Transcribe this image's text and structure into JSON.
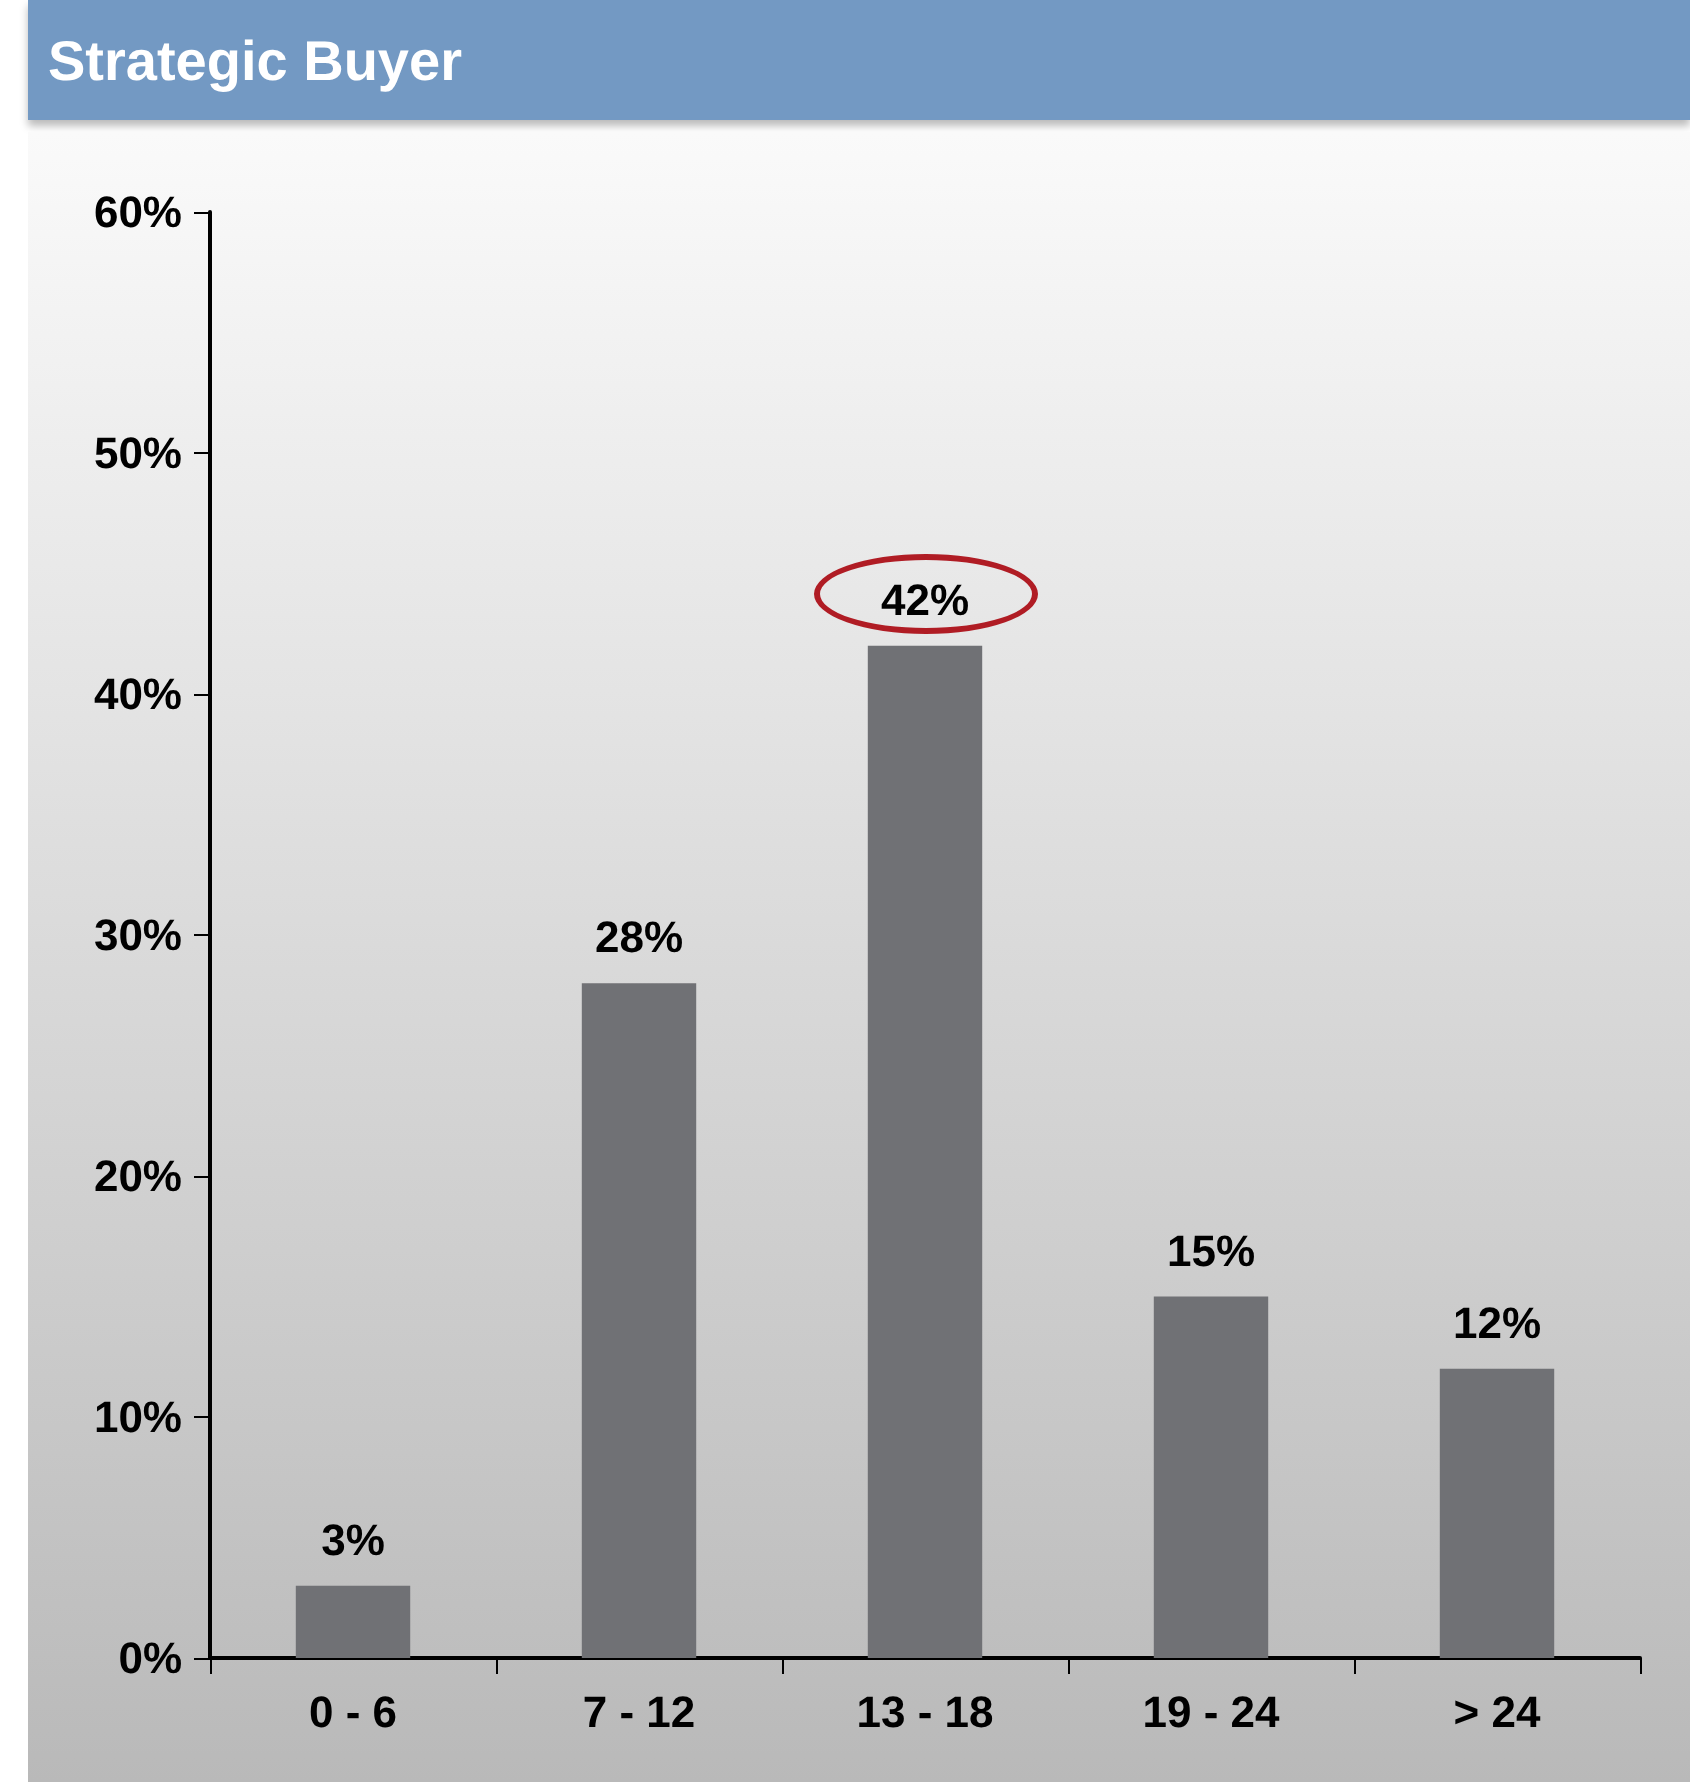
{
  "chart_data": {
    "type": "bar",
    "title": "Strategic Buyer",
    "categories": [
      "0 - 6",
      "7 - 12",
      "13 - 18",
      "19 - 24",
      "> 24"
    ],
    "values": [
      3,
      28,
      42,
      15,
      12
    ],
    "value_labels": [
      "3%",
      "28%",
      "42%",
      "15%",
      "12%"
    ],
    "color": "#707175",
    "ylim": [
      0,
      60
    ],
    "yticks": [
      {
        "value": 0,
        "label": "0%"
      },
      {
        "value": 10,
        "label": "10%"
      },
      {
        "value": 20,
        "label": "20%"
      },
      {
        "value": 30,
        "label": "30%"
      },
      {
        "value": 40,
        "label": "40%"
      },
      {
        "value": 50,
        "label": "50%"
      },
      {
        "value": 60,
        "label": "60%"
      }
    ],
    "grid": false
  }
}
